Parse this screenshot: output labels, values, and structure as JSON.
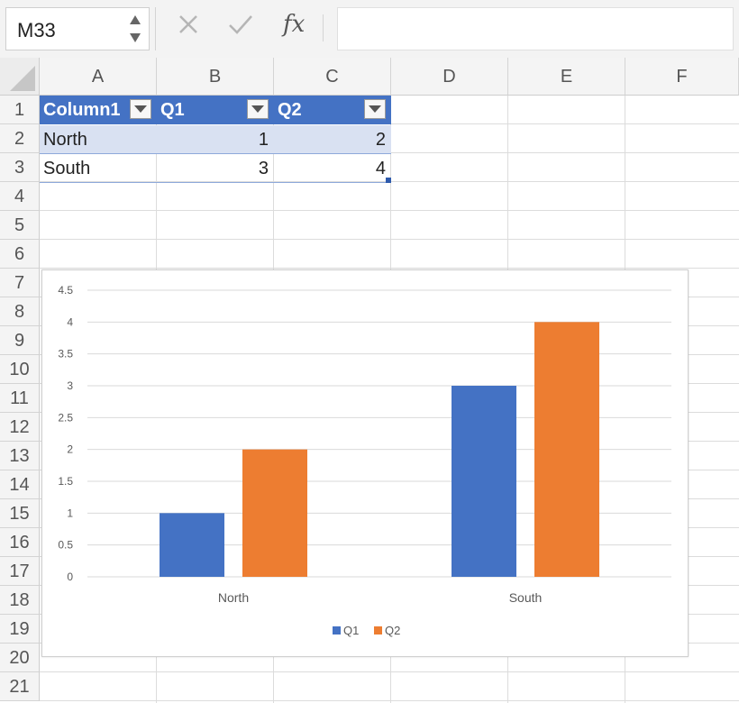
{
  "formula_bar": {
    "name_box": "M33",
    "cancel_icon": "close-icon",
    "enter_icon": "check-icon",
    "fx_label": "fx",
    "formula": ""
  },
  "sheet": {
    "columns": [
      "A",
      "B",
      "C",
      "D",
      "E",
      "F"
    ],
    "rows": [
      "1",
      "2",
      "3",
      "4",
      "5",
      "6",
      "7",
      "8",
      "9",
      "10",
      "11",
      "12",
      "13",
      "14",
      "15",
      "16",
      "17",
      "18",
      "19",
      "20",
      "21"
    ],
    "table": {
      "headers": [
        "Column1",
        "Q1",
        "Q2"
      ],
      "rows": [
        [
          "North",
          "1",
          "2"
        ],
        [
          "South",
          "3",
          "4"
        ]
      ]
    }
  },
  "colors": {
    "table_header": "#4472c4",
    "table_band": "#d9e1f2",
    "series_q1": "#4472c4",
    "series_q2": "#ed7d31"
  },
  "chart_data": {
    "type": "bar",
    "title": "",
    "xlabel": "",
    "ylabel": "",
    "categories": [
      "North",
      "South"
    ],
    "series": [
      {
        "name": "Q1",
        "values": [
          1,
          3
        ]
      },
      {
        "name": "Q2",
        "values": [
          2,
          4
        ]
      }
    ],
    "ylim": [
      0,
      4.5
    ],
    "yticks": [
      "0",
      "0.5",
      "1",
      "1.5",
      "2",
      "2.5",
      "3",
      "3.5",
      "4",
      "4.5"
    ],
    "grid": true,
    "legend": "bottom"
  }
}
